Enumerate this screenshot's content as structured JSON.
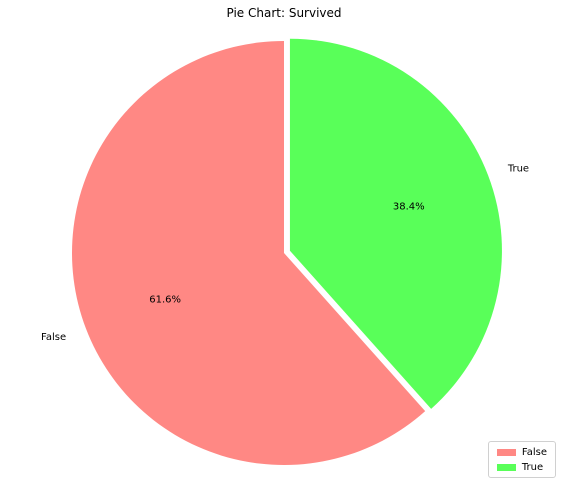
{
  "chart_data": {
    "type": "pie",
    "title": "Pie Chart: Survived",
    "categories": [
      "False",
      "True"
    ],
    "values": [
      61.6,
      38.4
    ],
    "percent_labels": [
      "61.6%",
      "38.4%"
    ],
    "colors": [
      "#ff8884",
      "#59ff59"
    ],
    "start_angle_deg": 90,
    "direction": "counterclockwise",
    "exploded": true,
    "legend": {
      "placement": "lower-right",
      "entries": [
        "False",
        "True"
      ]
    }
  }
}
